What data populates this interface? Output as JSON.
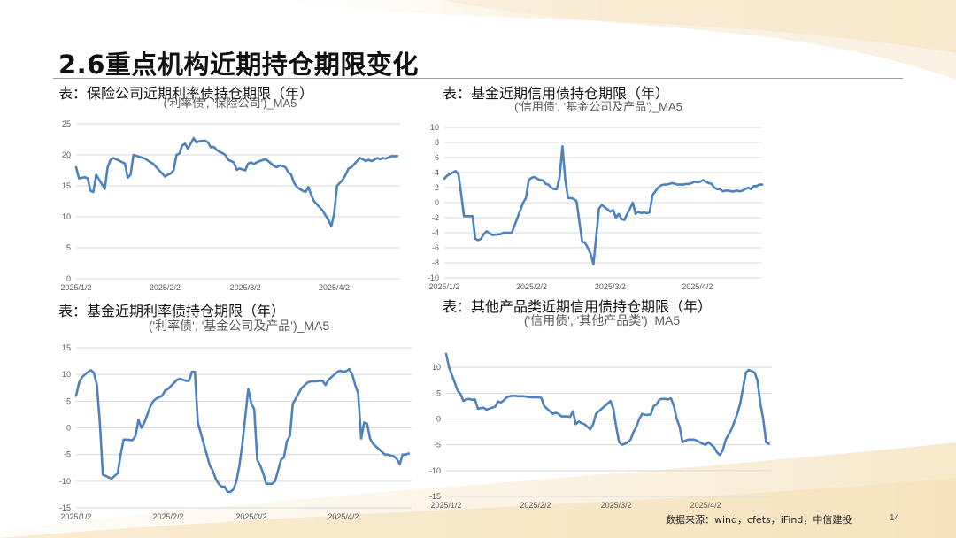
{
  "slide": {
    "title": "2.6重点机构近期持仓期限变化",
    "source": "数据来源：wind，cfets，iFind，中信建投",
    "page_number": "14"
  },
  "panels": {
    "p1_caption": "表：保险公司近期利率债持仓期限（年）",
    "p2_caption": "表：基金近期信用债持仓期限（年）",
    "p3_caption": "表：基金近期利率债持仓期限（年）",
    "p4_caption": "表：其他产品类近期信用债持仓期限（年）"
  },
  "colors": {
    "series": "#4f81bd",
    "grid": "#d9d9d9",
    "text": "#595959"
  },
  "chart_data": [
    {
      "type": "line",
      "title": "('利率债', '保险公司')_MA5",
      "xlabel": "",
      "ylabel": "",
      "ylim": [
        0,
        25
      ],
      "yticks": [
        0,
        5,
        10,
        15,
        20,
        25
      ],
      "x_tick_labels": [
        "2025/1/2",
        "2025/2/2",
        "2025/3/2",
        "2025/4/2"
      ],
      "x_tick_days": [
        0,
        31,
        59,
        90
      ],
      "x_range_days": [
        0,
        113
      ],
      "grid": true,
      "legend": "none",
      "x_days": [
        0,
        1,
        3,
        4,
        5,
        6,
        7,
        10,
        11,
        12,
        13,
        14,
        17,
        18,
        19,
        20,
        24,
        27,
        28,
        31,
        32,
        33,
        34,
        35,
        36,
        37,
        38,
        39,
        41,
        42,
        43,
        45,
        46,
        47,
        48,
        49,
        50,
        51,
        52,
        53,
        54,
        55,
        56,
        57,
        59,
        60,
        61,
        62,
        63,
        64,
        66,
        67,
        69,
        70,
        71,
        72,
        73,
        74,
        75,
        76,
        77,
        78,
        79,
        80,
        81,
        82,
        83,
        84,
        85,
        86,
        87,
        88,
        89,
        90,
        91,
        92,
        93,
        94,
        95,
        96,
        97,
        98,
        99,
        100,
        101,
        102,
        103,
        104,
        105,
        106,
        107,
        108,
        109,
        110,
        111,
        112
      ],
      "values": [
        18.0,
        16.2,
        16.4,
        16.2,
        14.2,
        14.0,
        16.8,
        14.5,
        18.0,
        19.2,
        19.5,
        19.3,
        18.6,
        16.3,
        16.8,
        20.0,
        19.4,
        18.5,
        18.0,
        16.5,
        16.8,
        17.0,
        17.5,
        20.0,
        20.2,
        21.5,
        21.8,
        21.0,
        22.7,
        22.0,
        22.2,
        22.3,
        22.0,
        21.2,
        21.3,
        20.8,
        20.5,
        20.3,
        20.0,
        19.2,
        19.0,
        18.8,
        17.6,
        17.8,
        17.5,
        18.6,
        18.8,
        18.5,
        18.8,
        19.0,
        19.3,
        19.0,
        18.2,
        18.0,
        18.3,
        18.2,
        18.0,
        17.2,
        16.8,
        15.5,
        14.8,
        14.5,
        14.2,
        14.0,
        14.8,
        13.5,
        12.5,
        12.0,
        11.5,
        11.0,
        10.2,
        9.5,
        8.5,
        10.5,
        15.0,
        15.5,
        16.0,
        16.8,
        17.8,
        18.0,
        18.5,
        19.0,
        19.5,
        19.3,
        19.0,
        19.2,
        19.0,
        19.2,
        19.5,
        19.3,
        19.5,
        19.4,
        19.6,
        19.8,
        19.8,
        19.8
      ]
    },
    {
      "type": "line",
      "title": "('信用债', '基金公司及产品')_MA5",
      "xlabel": "",
      "ylabel": "",
      "ylim": [
        -10,
        10
      ],
      "yticks": [
        -10,
        -8,
        -6,
        -4,
        -2,
        0,
        2,
        4,
        6,
        8,
        10
      ],
      "x_tick_labels": [
        "2025/1/2",
        "2025/2/2",
        "2025/3/2",
        "2025/4/2"
      ],
      "x_tick_days": [
        0,
        31,
        59,
        90
      ],
      "x_range_days": [
        0,
        113
      ],
      "grid": true,
      "legend": "none",
      "x_days": [
        0,
        1,
        2,
        3,
        4,
        5,
        6,
        7,
        8,
        9,
        10,
        11,
        12,
        13,
        14,
        15,
        17,
        20,
        21,
        22,
        24,
        28,
        29,
        30,
        31,
        32,
        33,
        34,
        35,
        36,
        37,
        38,
        39,
        40,
        41,
        42,
        43,
        44,
        45,
        46,
        47,
        48,
        49,
        50,
        51,
        52,
        53,
        55,
        56,
        57,
        58,
        59,
        60,
        61,
        62,
        63,
        64,
        65,
        66,
        67,
        68,
        69,
        70,
        71,
        72,
        73,
        74,
        75,
        76,
        77,
        78,
        79,
        80,
        81,
        83,
        85,
        86,
        87,
        88,
        89,
        90,
        91,
        92,
        93,
        94,
        95,
        96,
        97,
        98,
        99,
        100,
        101,
        102,
        103,
        104,
        105,
        106,
        107,
        108,
        109,
        110,
        111,
        112,
        113
      ],
      "values": [
        3.2,
        3.6,
        3.8,
        4.0,
        4.2,
        3.8,
        1.0,
        -1.8,
        -1.8,
        -1.8,
        -1.8,
        -4.8,
        -5.0,
        -4.8,
        -4.2,
        -3.8,
        -4.3,
        -4.2,
        -4.0,
        -4.0,
        -4.0,
        0.0,
        0.6,
        3.0,
        3.3,
        3.4,
        3.2,
        3.0,
        3.0,
        2.5,
        2.4,
        2.0,
        1.8,
        1.8,
        3.5,
        7.5,
        3.0,
        0.6,
        0.6,
        0.5,
        0.2,
        -2.5,
        -5.2,
        -5.3,
        -6.0,
        -6.8,
        -8.2,
        -0.8,
        -0.3,
        -0.6,
        -0.9,
        -1.2,
        -1.0,
        -2.0,
        -1.5,
        -2.2,
        -2.3,
        -1.5,
        -0.8,
        0.0,
        -1.5,
        -1.2,
        -1.4,
        -1.3,
        -1.4,
        -1.3,
        1.0,
        1.5,
        2.0,
        2.3,
        2.4,
        2.4,
        2.5,
        2.6,
        2.4,
        2.4,
        2.5,
        2.5,
        2.6,
        2.8,
        2.7,
        2.8,
        3.0,
        2.8,
        2.6,
        2.5,
        2.0,
        1.8,
        1.8,
        1.5,
        1.6,
        1.6,
        1.5,
        1.5,
        1.6,
        1.5,
        1.6,
        1.8,
        2.0,
        1.8,
        2.2,
        2.2,
        2.4,
        2.4
      ]
    },
    {
      "type": "line",
      "title": "('利率债', '基金公司及产品')_MA5",
      "xlabel": "",
      "ylabel": "",
      "ylim": [
        -15,
        15
      ],
      "yticks": [
        -15,
        -10,
        -5,
        0,
        5,
        10,
        15
      ],
      "x_tick_labels": [
        "2025/1/2",
        "2025/2/2",
        "2025/3/2",
        "2025/4/2"
      ],
      "x_tick_days": [
        0,
        31,
        59,
        90
      ],
      "x_range_days": [
        0,
        113
      ],
      "grid": true,
      "legend": "none",
      "x_days": [
        0,
        1,
        2,
        4,
        5,
        6,
        7,
        8,
        9,
        10,
        11,
        12,
        13,
        14,
        15,
        16,
        17,
        19,
        20,
        21,
        22,
        23,
        24,
        25,
        26,
        27,
        29,
        30,
        31,
        34,
        35,
        36,
        37,
        38,
        39,
        40,
        41,
        42,
        43,
        44,
        45,
        46,
        47,
        48,
        49,
        50,
        51,
        52,
        53,
        54,
        55,
        56,
        58,
        59,
        60,
        61,
        62,
        63,
        64,
        65,
        66,
        67,
        68,
        69,
        70,
        71,
        72,
        73,
        74,
        75,
        76,
        77,
        78,
        79,
        80,
        81,
        82,
        83,
        84,
        85,
        86,
        87,
        88,
        89,
        90,
        91,
        92,
        93,
        94,
        95,
        96,
        97,
        98,
        99,
        100,
        101,
        102,
        103,
        104,
        105,
        106,
        107,
        108,
        109,
        110,
        111,
        112
      ],
      "values": [
        6.0,
        8.5,
        9.5,
        10.5,
        10.8,
        10.3,
        8.0,
        1.0,
        -8.8,
        -9.0,
        -9.3,
        -9.5,
        -9.0,
        -8.5,
        -5.0,
        -2.2,
        -2.2,
        -2.3,
        -1.5,
        1.5,
        0.0,
        1.0,
        2.5,
        4.0,
        5.0,
        5.5,
        6.0,
        7.0,
        7.3,
        9.0,
        9.2,
        9.0,
        8.8,
        8.8,
        10.5,
        10.5,
        1.0,
        -1.0,
        -3.0,
        -5.0,
        -7.0,
        -8.0,
        -9.5,
        -10.5,
        -11.0,
        -11.0,
        -12.0,
        -12.0,
        -11.5,
        -10.0,
        -7.0,
        -3.0,
        7.3,
        4.5,
        3.5,
        -6.0,
        -7.0,
        -8.5,
        -10.5,
        -10.5,
        -10.5,
        -10.0,
        -8.0,
        -6.0,
        -5.5,
        -2.5,
        -1.5,
        4.5,
        5.5,
        6.5,
        7.5,
        8.0,
        8.5,
        8.7,
        8.7,
        8.7,
        8.8,
        8.8,
        8.0,
        9.0,
        9.5,
        10.0,
        10.5,
        10.7,
        10.5,
        10.6,
        11.0,
        10.0,
        8.0,
        6.5,
        -2.0,
        1.0,
        0.8,
        -2.0,
        -3.0,
        -3.5,
        -4.0,
        -4.5,
        -5.0,
        -5.0,
        -5.2,
        -5.3,
        -5.8,
        -6.8,
        -5.0,
        -5.0,
        -4.8
      ]
    },
    {
      "type": "line",
      "title": "('信用债', '其他产品类')_MA5",
      "xlabel": "",
      "ylabel": "",
      "ylim": [
        -15,
        15
      ],
      "yticks": [
        -15,
        -10,
        -5,
        0,
        5,
        10
      ],
      "x_tick_labels": [
        "2025/1/2",
        "2025/2/2",
        "2025/3/2",
        "2025/4/2"
      ],
      "x_tick_days": [
        0,
        31,
        59,
        90
      ],
      "x_range_days": [
        0,
        113
      ],
      "grid": true,
      "legend": "none",
      "x_days": [
        0,
        1,
        2,
        3,
        4,
        5,
        6,
        7,
        8,
        9,
        10,
        11,
        12,
        13,
        14,
        15,
        16,
        17,
        18,
        19,
        20,
        21,
        22,
        23,
        24,
        25,
        26,
        27,
        28,
        29,
        30,
        31,
        32,
        33,
        34,
        35,
        36,
        37,
        38,
        39,
        40,
        41,
        42,
        43,
        44,
        45,
        46,
        47,
        48,
        49,
        50,
        51,
        52,
        53,
        54,
        55,
        56,
        57,
        58,
        59,
        60,
        61,
        62,
        63,
        64,
        65,
        66,
        67,
        68,
        69,
        70,
        71,
        72,
        73,
        74,
        75,
        76,
        77,
        78,
        79,
        80,
        81,
        82,
        83,
        84,
        85,
        86,
        87,
        88,
        89,
        90,
        91,
        92,
        93,
        94,
        95,
        96,
        97,
        98,
        99,
        100,
        101,
        102,
        103,
        104,
        105,
        106,
        107,
        108,
        109,
        110,
        111,
        112
      ],
      "values": [
        12.6,
        10.0,
        8.5,
        7.0,
        5.5,
        4.8,
        3.5,
        3.8,
        3.9,
        3.7,
        3.8,
        2.0,
        2.1,
        2.2,
        1.8,
        2.0,
        2.2,
        2.4,
        3.4,
        3.2,
        3.6,
        4.2,
        4.4,
        4.5,
        4.5,
        4.4,
        4.4,
        4.4,
        4.3,
        4.2,
        4.2,
        4.2,
        4.2,
        4.1,
        2.5,
        2.0,
        1.5,
        1.0,
        1.2,
        1.0,
        0.5,
        0.5,
        0.5,
        0.4,
        1.5,
        -1.0,
        -0.5,
        -0.8,
        -1.0,
        -1.5,
        -2.0,
        -1.0,
        1.0,
        1.5,
        2.0,
        2.5,
        3.0,
        3.5,
        2.0,
        -1.5,
        -4.5,
        -5.0,
        -4.8,
        -4.5,
        -4.0,
        -2.5,
        -1.5,
        0.0,
        1.0,
        0.8,
        0.8,
        0.9,
        2.5,
        2.8,
        3.8,
        3.9,
        3.9,
        3.8,
        4.0,
        2.5,
        0.0,
        -1.5,
        -4.5,
        -4.2,
        -4.0,
        -4.0,
        -4.0,
        -4.2,
        -4.5,
        -4.8,
        -5.0,
        -4.5,
        -5.0,
        -5.5,
        -6.5,
        -7.0,
        -6.0,
        -4.0,
        -3.0,
        -2.0,
        -0.5,
        1.0,
        3.0,
        6.0,
        9.0,
        9.5,
        9.3,
        9.0,
        7.5,
        3.0,
        0.0,
        -4.5,
        -4.8
      ]
    }
  ]
}
